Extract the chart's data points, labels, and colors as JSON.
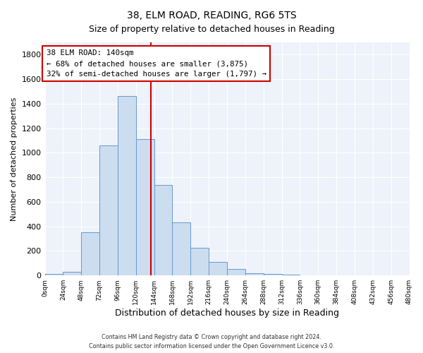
{
  "title": "38, ELM ROAD, READING, RG6 5TS",
  "subtitle": "Size of property relative to detached houses in Reading",
  "xlabel": "Distribution of detached houses by size in Reading",
  "ylabel": "Number of detached properties",
  "bar_color": "#ccddf0",
  "bar_edge_color": "#6699cc",
  "background_color": "#eef2fa",
  "vline_x": 140,
  "vline_color": "#cc0000",
  "annotation_title": "38 ELM ROAD: 140sqm",
  "annotation_line1": "← 68% of detached houses are smaller (3,875)",
  "annotation_line2": "32% of semi-detached houses are larger (1,797) →",
  "annotation_box_color": "#cc0000",
  "bin_edges": [
    0,
    24,
    48,
    72,
    96,
    120,
    144,
    168,
    192,
    216,
    240,
    264,
    288,
    312,
    336,
    360,
    384,
    408,
    432,
    456,
    480
  ],
  "bin_counts": [
    15,
    30,
    355,
    1060,
    1460,
    1110,
    740,
    430,
    225,
    110,
    55,
    20,
    10,
    5,
    2,
    1,
    1,
    0,
    1,
    0
  ],
  "ylim": [
    0,
    1900
  ],
  "yticks": [
    0,
    200,
    400,
    600,
    800,
    1000,
    1200,
    1400,
    1600,
    1800
  ],
  "footer_line1": "Contains HM Land Registry data © Crown copyright and database right 2024.",
  "footer_line2": "Contains public sector information licensed under the Open Government Licence v3.0."
}
